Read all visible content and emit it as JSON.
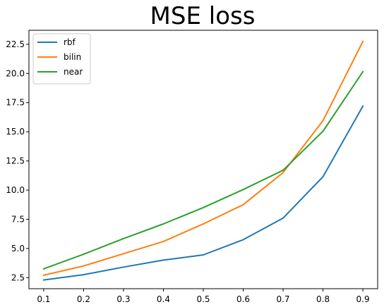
{
  "chart_data": {
    "type": "line",
    "title": "MSE loss",
    "xlabel": "",
    "ylabel": "",
    "x": [
      0.1,
      0.2,
      0.3,
      0.4,
      0.5,
      0.6,
      0.7,
      0.8,
      0.9
    ],
    "x_ticks": [
      "0.1",
      "0.2",
      "0.3",
      "0.4",
      "0.5",
      "0.6",
      "0.7",
      "0.8",
      "0.9"
    ],
    "y_ticks": [
      "2.5",
      "5.0",
      "7.5",
      "10.0",
      "12.5",
      "15.0",
      "17.5",
      "20.0",
      "22.5"
    ],
    "y_tick_values": [
      2.5,
      5.0,
      7.5,
      10.0,
      12.5,
      15.0,
      17.5,
      20.0,
      22.5
    ],
    "xlim": [
      0.063,
      0.937
    ],
    "ylim": [
      1.55,
      23.7
    ],
    "grid": false,
    "legend_position": "top-left",
    "series": [
      {
        "name": "rbf",
        "color": "#1f77b4",
        "values": [
          2.3,
          2.75,
          3.4,
          4.0,
          4.45,
          5.75,
          7.6,
          11.15,
          17.2
        ]
      },
      {
        "name": "bilin",
        "color": "#ff7f0e",
        "values": [
          2.7,
          3.5,
          4.55,
          5.6,
          7.1,
          8.75,
          11.5,
          15.95,
          22.75
        ]
      },
      {
        "name": "near",
        "color": "#2ca02c",
        "values": [
          3.25,
          4.5,
          5.85,
          7.1,
          8.5,
          10.05,
          11.7,
          15.05,
          20.15
        ]
      }
    ]
  }
}
